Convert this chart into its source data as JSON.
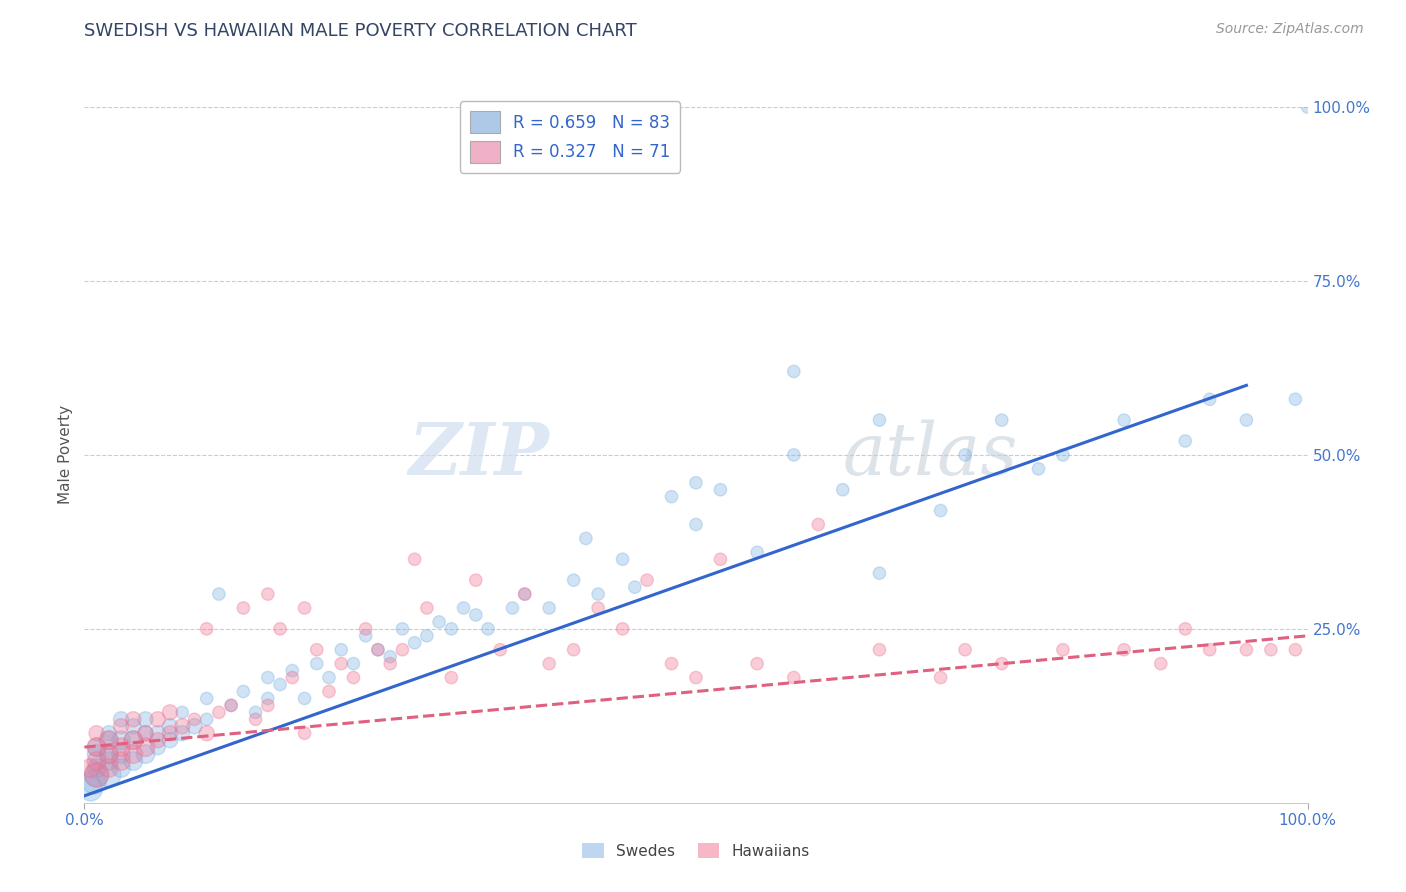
{
  "title": "SWEDISH VS HAWAIIAN MALE POVERTY CORRELATION CHART",
  "source": "Source: ZipAtlas.com",
  "ylabel": "Male Poverty",
  "xlabel": "",
  "xlim": [
    0.0,
    1.0
  ],
  "ylim": [
    0.0,
    1.0
  ],
  "xtick_labels": [
    "0.0%",
    "100.0%"
  ],
  "ytick_labels": [
    "25.0%",
    "50.0%",
    "75.0%",
    "100.0%"
  ],
  "ytick_positions": [
    0.25,
    0.5,
    0.75,
    1.0
  ],
  "legend_entries": [
    {
      "label": "R = 0.659   N = 83",
      "color": "#adc8e8"
    },
    {
      "label": "R = 0.327   N = 71",
      "color": "#f0b0c8"
    }
  ],
  "swedes_color": "#7ab0e0",
  "hawaiians_color": "#f07090",
  "swedes_line_color": "#3366cc",
  "hawaiians_line_color": "#e06080",
  "watermark_zip": "ZIP",
  "watermark_atlas": "atlas",
  "background_color": "#ffffff",
  "grid_color": "#cccccc",
  "swedes_line": {
    "x0": 0.0,
    "x1": 0.95,
    "y0": 0.01,
    "y1": 0.6
  },
  "hawaiians_line": {
    "x0": 0.0,
    "x1": 1.0,
    "y0": 0.08,
    "y1": 0.24
  },
  "swedes_scatter_x": [
    0.005,
    0.008,
    0.01,
    0.01,
    0.01,
    0.01,
    0.02,
    0.02,
    0.02,
    0.02,
    0.02,
    0.03,
    0.03,
    0.03,
    0.03,
    0.04,
    0.04,
    0.04,
    0.05,
    0.05,
    0.05,
    0.06,
    0.06,
    0.07,
    0.07,
    0.08,
    0.08,
    0.09,
    0.1,
    0.1,
    0.11,
    0.12,
    0.13,
    0.14,
    0.15,
    0.15,
    0.16,
    0.17,
    0.18,
    0.19,
    0.2,
    0.21,
    0.22,
    0.23,
    0.24,
    0.25,
    0.26,
    0.27,
    0.28,
    0.29,
    0.3,
    0.31,
    0.32,
    0.33,
    0.35,
    0.36,
    0.38,
    0.4,
    0.41,
    0.42,
    0.44,
    0.45,
    0.48,
    0.5,
    0.52,
    0.5,
    0.55,
    0.58,
    0.58,
    0.62,
    0.65,
    0.65,
    0.7,
    0.72,
    0.75,
    0.78,
    0.8,
    0.85,
    0.9,
    0.92,
    0.95,
    0.99,
    1.0
  ],
  "swedes_scatter_y": [
    0.02,
    0.03,
    0.04,
    0.05,
    0.07,
    0.08,
    0.04,
    0.06,
    0.07,
    0.09,
    0.1,
    0.05,
    0.07,
    0.09,
    0.12,
    0.06,
    0.09,
    0.11,
    0.07,
    0.1,
    0.12,
    0.08,
    0.1,
    0.09,
    0.11,
    0.1,
    0.13,
    0.11,
    0.12,
    0.15,
    0.3,
    0.14,
    0.16,
    0.13,
    0.15,
    0.18,
    0.17,
    0.19,
    0.15,
    0.2,
    0.18,
    0.22,
    0.2,
    0.24,
    0.22,
    0.21,
    0.25,
    0.23,
    0.24,
    0.26,
    0.25,
    0.28,
    0.27,
    0.25,
    0.28,
    0.3,
    0.28,
    0.32,
    0.38,
    0.3,
    0.35,
    0.31,
    0.44,
    0.4,
    0.45,
    0.46,
    0.36,
    0.5,
    0.62,
    0.45,
    0.33,
    0.55,
    0.42,
    0.5,
    0.55,
    0.48,
    0.5,
    0.55,
    0.52,
    0.58,
    0.55,
    0.58,
    1.0
  ],
  "hawaiians_scatter_x": [
    0.005,
    0.01,
    0.01,
    0.01,
    0.01,
    0.02,
    0.02,
    0.02,
    0.03,
    0.03,
    0.03,
    0.04,
    0.04,
    0.04,
    0.05,
    0.05,
    0.06,
    0.06,
    0.07,
    0.07,
    0.08,
    0.09,
    0.1,
    0.1,
    0.11,
    0.12,
    0.13,
    0.14,
    0.15,
    0.15,
    0.16,
    0.17,
    0.18,
    0.18,
    0.19,
    0.2,
    0.21,
    0.22,
    0.23,
    0.24,
    0.25,
    0.26,
    0.27,
    0.28,
    0.3,
    0.32,
    0.34,
    0.36,
    0.38,
    0.4,
    0.42,
    0.44,
    0.46,
    0.48,
    0.5,
    0.52,
    0.55,
    0.58,
    0.6,
    0.65,
    0.7,
    0.72,
    0.75,
    0.8,
    0.85,
    0.88,
    0.9,
    0.92,
    0.95,
    0.97,
    0.99
  ],
  "hawaiians_scatter_y": [
    0.05,
    0.04,
    0.06,
    0.08,
    0.1,
    0.05,
    0.07,
    0.09,
    0.06,
    0.08,
    0.11,
    0.07,
    0.09,
    0.12,
    0.08,
    0.1,
    0.09,
    0.12,
    0.1,
    0.13,
    0.11,
    0.12,
    0.1,
    0.25,
    0.13,
    0.14,
    0.28,
    0.12,
    0.14,
    0.3,
    0.25,
    0.18,
    0.1,
    0.28,
    0.22,
    0.16,
    0.2,
    0.18,
    0.25,
    0.22,
    0.2,
    0.22,
    0.35,
    0.28,
    0.18,
    0.32,
    0.22,
    0.3,
    0.2,
    0.22,
    0.28,
    0.25,
    0.32,
    0.2,
    0.18,
    0.35,
    0.2,
    0.18,
    0.4,
    0.22,
    0.18,
    0.22,
    0.2,
    0.22,
    0.22,
    0.2,
    0.25,
    0.22,
    0.22,
    0.22,
    0.22
  ]
}
